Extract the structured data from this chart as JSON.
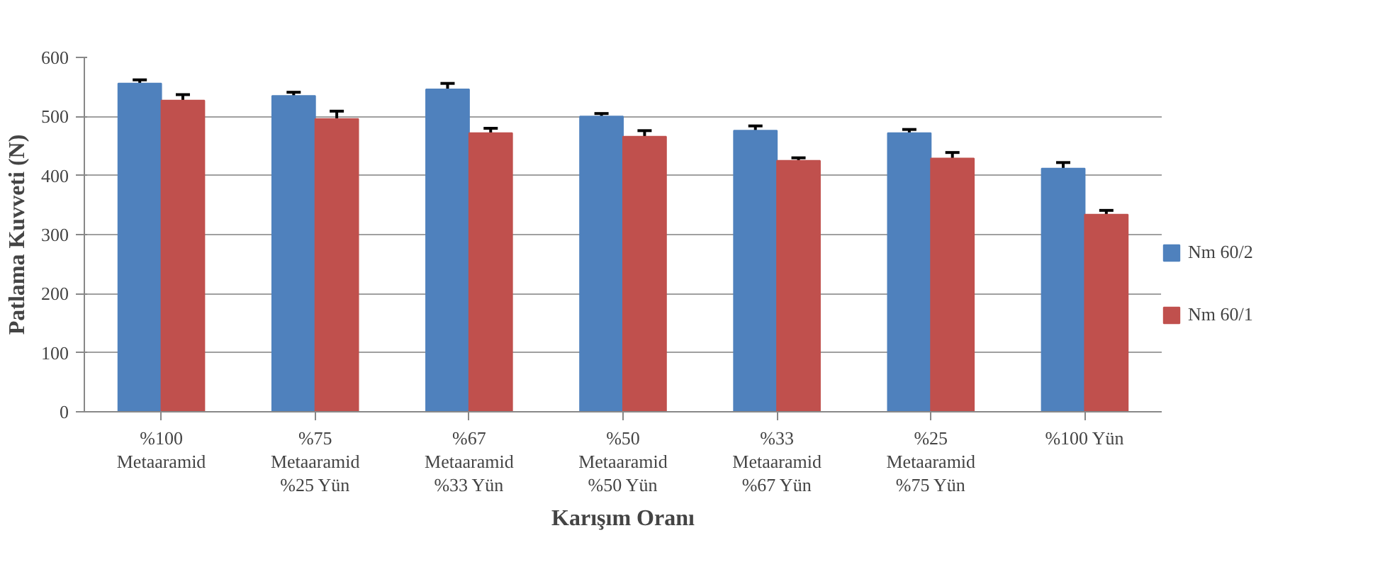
{
  "chart_data": {
    "type": "bar",
    "xlabel": "Karışım Oranı",
    "ylabel": "Patlama Kuvveti (N)",
    "categories": [
      "%100\nMetaaramid",
      "%75\nMetaaramid\n%25 Yün",
      "%67\nMetaaramid\n%33 Yün",
      "%50\nMetaaramid\n%50 Yün",
      "%33\nMetaaramid\n%67 Yün",
      "%25\nMetaaramid\n%75 Yün",
      "%100 Yün"
    ],
    "series": [
      {
        "name": "Nm 60/2",
        "color": "#4f81bd",
        "values": [
          556,
          535,
          546,
          500,
          476,
          472,
          412
        ],
        "errors": [
          6,
          6,
          10,
          5,
          8,
          6,
          10
        ]
      },
      {
        "name": "Nm 60/1",
        "color": "#c0504d",
        "values": [
          527,
          496,
          472,
          466,
          425,
          429,
          334
        ],
        "errors": [
          10,
          13,
          8,
          10,
          5,
          10,
          7
        ]
      }
    ],
    "ylim": [
      0,
      600
    ],
    "yticks": [
      0,
      100,
      200,
      300,
      400,
      500,
      600
    ],
    "grid": "y",
    "legend": "right"
  }
}
